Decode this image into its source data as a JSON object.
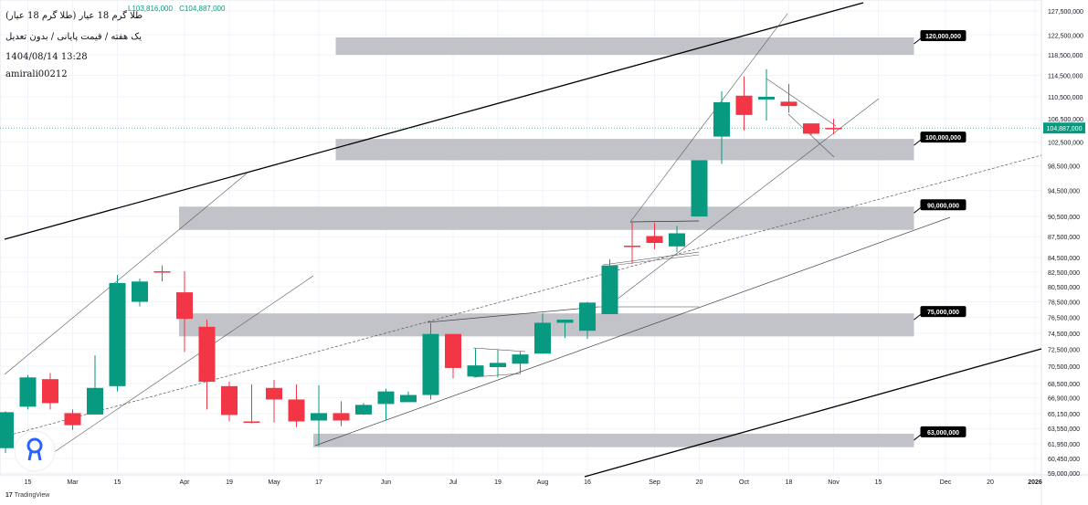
{
  "header": {
    "low": "L103,816,000",
    "close": "C104,887,000",
    "title": "طلا گرم 18 عیار (طلا گرم 18 عیار)",
    "subtitle": "یک هفته / قیمت پایانی / بدون تعدیل",
    "datetime": "1404/08/14 13:28",
    "author": "amirali00212"
  },
  "branding": {
    "logo_mark": "17",
    "name": "TradingView"
  },
  "chart_data": {
    "type": "candlestick",
    "interval": "weekly",
    "y_scale": "log",
    "ylim": [
      59000000,
      127500000
    ],
    "grid": true,
    "colors": {
      "up": "#089981",
      "down": "#f23645",
      "zone": "#c2c3c9",
      "last_price": "#089981"
    },
    "last_price": 104887000,
    "last_price_label": "104,887,000",
    "y_ticks": [
      "127,500,000",
      "122,500,000",
      "118,500,000",
      "114,500,000",
      "110,500,000",
      "106,500,000",
      "102,500,000",
      "98,500,000",
      "94,500,000",
      "90,500,000",
      "87,500,000",
      "84,500,000",
      "82,500,000",
      "80,500,000",
      "78,500,000",
      "76,500,000",
      "74,500,000",
      "72,500,000",
      "70,500,000",
      "68,500,000",
      "66,900,000",
      "65,150,000",
      "63,550,000",
      "61,950,000",
      "60,450,000",
      "59,000,000"
    ],
    "x_ticks": [
      {
        "date": "2025-02-15",
        "label": "15"
      },
      {
        "date": "2025-03-01",
        "label": "Mar"
      },
      {
        "date": "2025-03-15",
        "label": "15"
      },
      {
        "date": "2025-04-05",
        "label": "Apr"
      },
      {
        "date": "2025-04-19",
        "label": "19"
      },
      {
        "date": "2025-05-03",
        "label": "May"
      },
      {
        "date": "2025-05-17",
        "label": "17"
      },
      {
        "date": "2025-06-07",
        "label": "Jun"
      },
      {
        "date": "2025-07-05",
        "label": "Jul"
      },
      {
        "date": "2025-07-19",
        "label": "19"
      },
      {
        "date": "2025-08-02",
        "label": "Aug"
      },
      {
        "date": "2025-08-16",
        "label": "16"
      },
      {
        "date": "2025-09-06",
        "label": "Sep"
      },
      {
        "date": "2025-09-20",
        "label": "20"
      },
      {
        "date": "2025-10-04",
        "label": "Oct"
      },
      {
        "date": "2025-10-18",
        "label": "18"
      },
      {
        "date": "2025-11-01",
        "label": "Nov"
      },
      {
        "date": "2025-11-15",
        "label": "15"
      },
      {
        "date": "2025-12-06",
        "label": "Dec"
      },
      {
        "date": "2025-12-20",
        "label": "20"
      },
      {
        "date": "2026-01-03",
        "label": "2026"
      }
    ],
    "candles": [
      {
        "date": "2025-02-08",
        "o": 61.5,
        "h": 65.4,
        "l": 61.0,
        "c": 65.3
      },
      {
        "date": "2025-02-15",
        "o": 65.9,
        "h": 69.5,
        "l": 65.6,
        "c": 69.2
      },
      {
        "date": "2025-02-22",
        "o": 69.0,
        "h": 69.7,
        "l": 65.6,
        "c": 66.3
      },
      {
        "date": "2025-03-01",
        "o": 65.2,
        "h": 65.6,
        "l": 63.4,
        "c": 63.9
      },
      {
        "date": "2025-03-08",
        "o": 65.05,
        "h": 71.8,
        "l": 65.05,
        "c": 68.0
      },
      {
        "date": "2025-03-15",
        "o": 68.2,
        "h": 82.1,
        "l": 67.6,
        "c": 81.0
      },
      {
        "date": "2025-03-22",
        "o": 78.5,
        "h": 81.6,
        "l": 77.9,
        "c": 81.2
      },
      {
        "date": "2025-03-29",
        "o": 82.6,
        "h": 83.4,
        "l": 81.2,
        "c": 82.5
      },
      {
        "date": "2025-04-05",
        "o": 79.75,
        "h": 82.6,
        "l": 72.2,
        "c": 76.3
      },
      {
        "date": "2025-04-12",
        "o": 75.3,
        "h": 76.2,
        "l": 65.6,
        "c": 68.7
      },
      {
        "date": "2025-04-19",
        "o": 68.2,
        "h": 68.7,
        "l": 64.3,
        "c": 65.0
      },
      {
        "date": "2025-04-26",
        "o": 64.3,
        "h": 68.4,
        "l": 64.1,
        "c": 64.2
      },
      {
        "date": "2025-05-03",
        "o": 68.0,
        "h": 68.9,
        "l": 64.2,
        "c": 66.7
      },
      {
        "date": "2025-05-10",
        "o": 66.7,
        "h": 68.4,
        "l": 63.7,
        "c": 64.3
      },
      {
        "date": "2025-05-17",
        "o": 64.4,
        "h": 68.3,
        "l": 61.7,
        "c": 65.2
      },
      {
        "date": "2025-05-24",
        "o": 65.2,
        "h": 66.5,
        "l": 63.8,
        "c": 64.4
      },
      {
        "date": "2025-05-31",
        "o": 65.05,
        "h": 66.3,
        "l": 65.0,
        "c": 66.1
      },
      {
        "date": "2025-06-07",
        "o": 66.2,
        "h": 67.9,
        "l": 64.4,
        "c": 67.6
      },
      {
        "date": "2025-06-14",
        "o": 66.4,
        "h": 67.6,
        "l": 66.4,
        "c": 67.2
      },
      {
        "date": "2025-06-28",
        "o": 67.2,
        "h": 75.8,
        "l": 66.7,
        "c": 74.4
      },
      {
        "date": "2025-07-05",
        "o": 74.4,
        "h": 74.4,
        "l": 69.1,
        "c": 70.3
      },
      {
        "date": "2025-07-12",
        "o": 69.3,
        "h": 72.6,
        "l": 69.2,
        "c": 70.6
      },
      {
        "date": "2025-07-19",
        "o": 70.4,
        "h": 72.5,
        "l": 69.2,
        "c": 70.9
      },
      {
        "date": "2025-07-26",
        "o": 70.8,
        "h": 72.3,
        "l": 69.7,
        "c": 71.9
      },
      {
        "date": "2025-08-02",
        "o": 72.0,
        "h": 77.0,
        "l": 72.0,
        "c": 75.8
      },
      {
        "date": "2025-08-09",
        "o": 75.8,
        "h": 76.2,
        "l": 73.9,
        "c": 76.2
      },
      {
        "date": "2025-08-16",
        "o": 74.8,
        "h": 78.5,
        "l": 73.8,
        "c": 78.4
      },
      {
        "date": "2025-08-23",
        "o": 76.9,
        "h": 84.3,
        "l": 76.9,
        "c": 83.4
      },
      {
        "date": "2025-08-30",
        "o": 86.2,
        "h": 89.7,
        "l": 83.6,
        "c": 86.1
      },
      {
        "date": "2025-09-06",
        "o": 87.6,
        "h": 89.6,
        "l": 85.7,
        "c": 86.6
      },
      {
        "date": "2025-09-13",
        "o": 86.1,
        "h": 89.1,
        "l": 85.3,
        "c": 88.0
      },
      {
        "date": "2025-09-20",
        "o": 90.5,
        "h": 99.4,
        "l": 90.5,
        "c": 99.4
      },
      {
        "date": "2025-09-27",
        "o": 103.4,
        "h": 111.5,
        "l": 98.8,
        "c": 109.5
      },
      {
        "date": "2025-10-04",
        "o": 110.7,
        "h": 114.3,
        "l": 104.5,
        "c": 107.2
      },
      {
        "date": "2025-10-11",
        "o": 110.0,
        "h": 115.7,
        "l": 106.2,
        "c": 110.5
      },
      {
        "date": "2025-10-18",
        "o": 109.6,
        "h": 112.9,
        "l": 107.6,
        "c": 108.8
      },
      {
        "date": "2025-10-25",
        "o": 105.7,
        "h": 105.7,
        "l": 103.6,
        "c": 103.9
      },
      {
        "date": "2025-11-01",
        "o": 104.9,
        "h": 106.5,
        "l": 103.816,
        "c": 104.887
      }
    ],
    "zones": [
      {
        "label": "120,000,000",
        "top": 122.0,
        "bottom": 118.5,
        "start": "2025-05-24",
        "end": "2025-11-29"
      },
      {
        "label": "100,000,000",
        "top": 103.0,
        "bottom": 99.4,
        "start": "2025-05-24",
        "end": "2025-11-29"
      },
      {
        "label": "90,000,000",
        "top": 92.0,
        "bottom": 88.5,
        "start": "2025-04-05",
        "end": "2025-11-29"
      },
      {
        "label": "75,000,000",
        "top": 77.0,
        "bottom": 74.1,
        "start": "2025-04-05",
        "end": "2025-11-29"
      },
      {
        "label": "63,000,000",
        "top": 63.0,
        "bottom": 61.6,
        "start": "2025-05-17",
        "end": "2025-11-29"
      }
    ]
  }
}
